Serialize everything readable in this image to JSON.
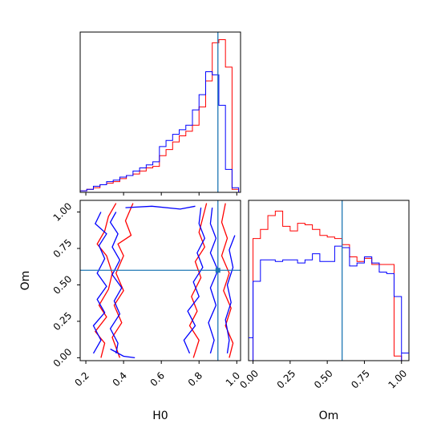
{
  "colors": {
    "red": "#ff0000",
    "blue": "#0000ff",
    "truth": "#1f77b4",
    "frame": "#000000"
  },
  "chart_data": [
    {
      "type": "histogram",
      "variable": "H0",
      "xlim": [
        0.17,
        1.02
      ],
      "ylim": [
        0,
        1.05
      ],
      "truth": 0.9,
      "bin_edges": [
        0.17,
        0.205,
        0.24,
        0.275,
        0.31,
        0.345,
        0.38,
        0.415,
        0.45,
        0.485,
        0.52,
        0.555,
        0.59,
        0.625,
        0.66,
        0.695,
        0.73,
        0.765,
        0.8,
        0.835,
        0.87,
        0.905,
        0.94,
        0.975,
        1.01
      ],
      "series": [
        {
          "color": "red",
          "values": [
            0.01,
            0.02,
            0.03,
            0.05,
            0.06,
            0.07,
            0.09,
            0.11,
            0.12,
            0.14,
            0.16,
            0.17,
            0.24,
            0.28,
            0.33,
            0.37,
            0.4,
            0.44,
            0.56,
            0.73,
            0.98,
            1.0,
            0.82,
            0.02
          ]
        },
        {
          "color": "blue",
          "values": [
            0.01,
            0.02,
            0.04,
            0.05,
            0.07,
            0.08,
            0.1,
            0.11,
            0.14,
            0.16,
            0.18,
            0.2,
            0.3,
            0.34,
            0.38,
            0.41,
            0.44,
            0.54,
            0.64,
            0.79,
            0.77,
            0.57,
            0.15,
            0.03
          ]
        }
      ]
    },
    {
      "type": "contour",
      "xvar": "H0",
      "yvar": "Om",
      "xlim": [
        0.17,
        1.02
      ],
      "ylim": [
        -0.02,
        1.08
      ],
      "truth": {
        "x": 0.9,
        "y": 0.6
      },
      "xticks": [
        "0.2",
        "0.4",
        "0.6",
        "0.8",
        "1.0"
      ],
      "yticks": [
        "0.00",
        "0.25",
        "0.50",
        "0.75",
        "1.00"
      ],
      "xlabel": "H0",
      "ylabel": "Om",
      "contours": [
        {
          "color": "red",
          "points": [
            [
              0.36,
              1.06
            ],
            [
              0.32,
              0.97
            ],
            [
              0.3,
              0.87
            ],
            [
              0.26,
              0.78
            ],
            [
              0.31,
              0.7
            ],
            [
              0.34,
              0.58
            ],
            [
              0.32,
              0.47
            ],
            [
              0.27,
              0.36
            ],
            [
              0.31,
              0.28
            ],
            [
              0.25,
              0.18
            ],
            [
              0.3,
              0.1
            ],
            [
              0.28,
              0.0
            ]
          ]
        },
        {
          "color": "red",
          "points": [
            [
              0.45,
              1.06
            ],
            [
              0.41,
              0.94
            ],
            [
              0.44,
              0.84
            ],
            [
              0.37,
              0.78
            ],
            [
              0.4,
              0.7
            ],
            [
              0.36,
              0.58
            ],
            [
              0.4,
              0.46
            ],
            [
              0.35,
              0.36
            ],
            [
              0.39,
              0.24
            ],
            [
              0.34,
              0.14
            ],
            [
              0.38,
              0.0
            ]
          ]
        },
        {
          "color": "red",
          "points": [
            [
              0.84,
              1.06
            ],
            [
              0.82,
              0.96
            ],
            [
              0.8,
              0.86
            ],
            [
              0.83,
              0.76
            ],
            [
              0.78,
              0.66
            ],
            [
              0.81,
              0.55
            ],
            [
              0.76,
              0.42
            ],
            [
              0.79,
              0.32
            ],
            [
              0.75,
              0.22
            ],
            [
              0.8,
              0.12
            ],
            [
              0.77,
              0.0
            ]
          ]
        },
        {
          "color": "red",
          "points": [
            [
              0.94,
              1.06
            ],
            [
              0.92,
              0.93
            ],
            [
              0.95,
              0.82
            ],
            [
              0.92,
              0.7
            ],
            [
              0.96,
              0.58
            ],
            [
              0.93,
              0.46
            ],
            [
              0.97,
              0.34
            ],
            [
              0.94,
              0.22
            ],
            [
              0.98,
              0.1
            ],
            [
              0.96,
              0.0
            ]
          ]
        },
        {
          "color": "blue",
          "points": [
            [
              0.28,
              1.0
            ],
            [
              0.25,
              0.92
            ],
            [
              0.31,
              0.85
            ],
            [
              0.27,
              0.77
            ],
            [
              0.3,
              0.68
            ],
            [
              0.26,
              0.58
            ],
            [
              0.31,
              0.49
            ],
            [
              0.26,
              0.4
            ],
            [
              0.3,
              0.31
            ],
            [
              0.24,
              0.22
            ],
            [
              0.28,
              0.12
            ],
            [
              0.24,
              0.03
            ]
          ]
        },
        {
          "color": "blue",
          "points": [
            [
              0.36,
              1.0
            ],
            [
              0.33,
              0.93
            ],
            [
              0.37,
              0.85
            ],
            [
              0.34,
              0.76
            ],
            [
              0.38,
              0.67
            ],
            [
              0.34,
              0.57
            ],
            [
              0.39,
              0.48
            ],
            [
              0.35,
              0.39
            ],
            [
              0.38,
              0.3
            ],
            [
              0.33,
              0.2
            ],
            [
              0.37,
              0.1
            ],
            [
              0.36,
              0.03
            ]
          ]
        },
        {
          "color": "blue",
          "points": [
            [
              0.41,
              1.03
            ],
            [
              0.55,
              1.04
            ],
            [
              0.7,
              1.02
            ],
            [
              0.78,
              1.04
            ]
          ]
        },
        {
          "color": "blue",
          "points": [
            [
              0.33,
              0.06
            ],
            [
              0.4,
              0.01
            ],
            [
              0.46,
              0.0
            ]
          ]
        },
        {
          "color": "blue",
          "points": [
            [
              0.81,
              1.03
            ],
            [
              0.8,
              0.92
            ],
            [
              0.83,
              0.82
            ],
            [
              0.79,
              0.72
            ],
            [
              0.82,
              0.62
            ],
            [
              0.77,
              0.52
            ],
            [
              0.8,
              0.42
            ],
            [
              0.74,
              0.32
            ],
            [
              0.78,
              0.22
            ],
            [
              0.72,
              0.12
            ],
            [
              0.75,
              0.03
            ]
          ]
        },
        {
          "color": "blue",
          "points": [
            [
              0.87,
              1.03
            ],
            [
              0.86,
              0.92
            ],
            [
              0.89,
              0.82
            ],
            [
              0.86,
              0.72
            ],
            [
              0.9,
              0.6
            ],
            [
              0.86,
              0.48
            ],
            [
              0.89,
              0.36
            ],
            [
              0.85,
              0.24
            ],
            [
              0.88,
              0.12
            ],
            [
              0.86,
              0.03
            ]
          ]
        },
        {
          "color": "blue",
          "points": [
            [
              0.99,
              0.84
            ],
            [
              0.96,
              0.74
            ],
            [
              0.98,
              0.62
            ],
            [
              0.95,
              0.5
            ],
            [
              0.97,
              0.38
            ],
            [
              0.94,
              0.26
            ],
            [
              0.96,
              0.12
            ],
            [
              0.95,
              0.03
            ]
          ]
        }
      ]
    },
    {
      "type": "histogram",
      "variable": "Om",
      "xlim": [
        -0.03,
        1.05
      ],
      "ylim": [
        0,
        1.05
      ],
      "truth": 0.6,
      "xticks": [
        "0.00",
        "0.25",
        "0.50",
        "0.75",
        "1.00"
      ],
      "xlabel": "Om",
      "bin_edges": [
        0.0,
        0.05,
        0.1,
        0.15,
        0.2,
        0.25,
        0.3,
        0.35,
        0.4,
        0.45,
        0.5,
        0.55,
        0.6,
        0.65,
        0.7,
        0.75,
        0.8,
        0.85,
        0.9,
        0.95,
        1.0
      ],
      "series": [
        {
          "color": "red",
          "values": [
            0.8,
            0.86,
            0.95,
            0.98,
            0.88,
            0.85,
            0.9,
            0.89,
            0.86,
            0.82,
            0.81,
            0.8,
            0.76,
            0.68,
            0.65,
            0.67,
            0.63,
            0.63,
            0.63,
            0.03
          ]
        },
        {
          "color": "blue",
          "values": [
            0.52,
            0.66,
            0.66,
            0.65,
            0.66,
            0.66,
            0.64,
            0.66,
            0.7,
            0.65,
            0.65,
            0.75,
            0.74,
            0.62,
            0.64,
            0.68,
            0.64,
            0.58,
            0.57,
            0.42
          ]
        }
      ]
    }
  ]
}
